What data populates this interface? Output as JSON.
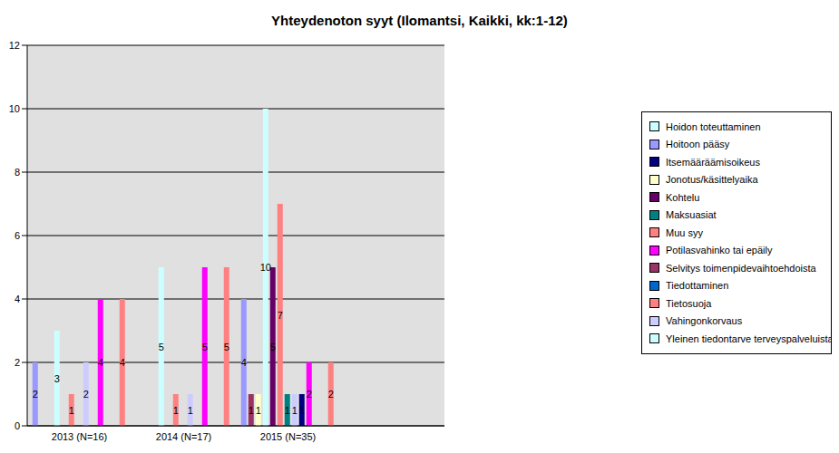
{
  "chart_data": {
    "type": "bar",
    "title": "Yhteydenoton syyt (Ilomantsi, Kaikki, kk:1-12)",
    "categories": [
      "2013 (N=16)",
      "2014 (N=17)",
      "2015 (N=35)",
      null
    ],
    "series": [
      {
        "name": "Hoitoon pääsy",
        "color": "#9999ff",
        "values": [
          2,
          0,
          4,
          null
        ]
      },
      {
        "name": "Selvitys toimenpidevaihtoehdoista",
        "color": "#993366",
        "values": [
          0,
          0,
          1,
          null
        ]
      },
      {
        "name": "Jonotus/käsittelyaika",
        "color": "#ffffcc",
        "values": [
          0,
          0,
          1,
          null
        ]
      },
      {
        "name": "Hoidon toteuttaminen",
        "color": "#ccffff",
        "values": [
          3,
          5,
          10,
          null
        ]
      },
      {
        "name": "Kohtelu",
        "color": "#660066",
        "values": [
          0,
          0,
          5,
          null
        ]
      },
      {
        "name": "Tietosuoja",
        "color": "#ff8080",
        "values": [
          1,
          1,
          7,
          null
        ]
      },
      {
        "name": "Maksuasiat",
        "color": "#008080",
        "values": [
          0,
          0,
          1,
          null
        ]
      },
      {
        "name": "Vahingonkorvaus",
        "color": "#ccccff",
        "values": [
          2,
          1,
          1,
          null
        ]
      },
      {
        "name": "Itsemääräämisoikeus",
        "color": "#000080",
        "values": [
          0,
          0,
          1,
          null
        ]
      },
      {
        "name": "Potilasvahinko tai epäily",
        "color": "#ff00ff",
        "values": [
          4,
          5,
          2,
          null
        ]
      },
      {
        "name": "Yleinen tiedontarve terveyspalveluista",
        "color": "#ccffff",
        "values": [
          0,
          0,
          0,
          null
        ]
      },
      {
        "name": "Tiedottaminen",
        "color": "#0066cc",
        "values": [
          0,
          0,
          0,
          null
        ]
      },
      {
        "name": "Muu syy",
        "color": "#ff8080",
        "values": [
          4,
          5,
          2,
          null
        ]
      }
    ],
    "ylim": [
      0,
      12
    ],
    "yticks": [
      0,
      2,
      4,
      6,
      8,
      10,
      12
    ],
    "grid": true,
    "legend": "right",
    "data_labels": true
  }
}
